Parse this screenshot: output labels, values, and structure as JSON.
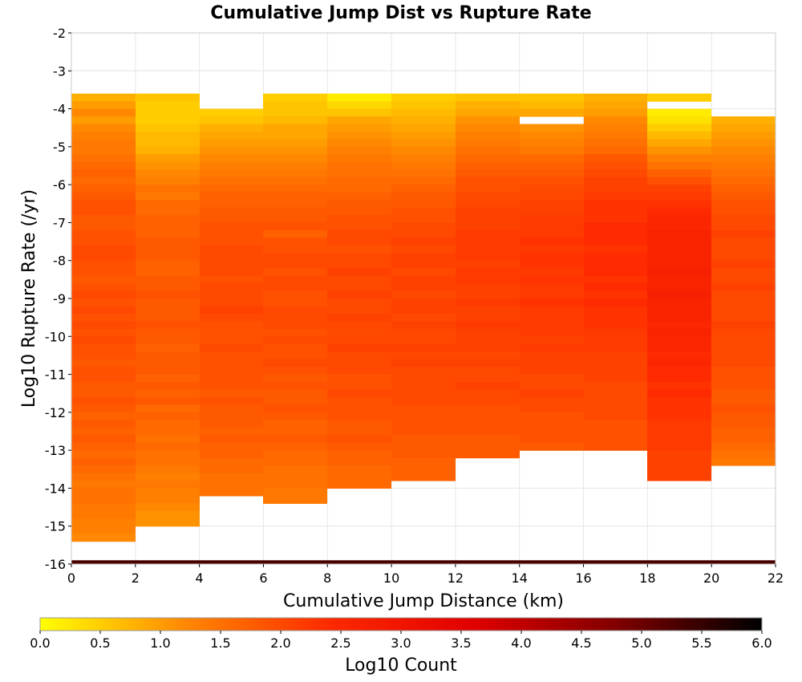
{
  "chart_data": {
    "type": "heatmap",
    "title": "Cumulative Jump Dist vs Rupture Rate",
    "xlabel": "Cumulative Jump Distance (km)",
    "ylabel": "Log10 Rupture Rate (/yr)",
    "xlim": [
      0,
      22
    ],
    "ylim": [
      -16,
      -2
    ],
    "x_ticks": [
      "0",
      "2",
      "4",
      "6",
      "8",
      "10",
      "12",
      "14",
      "16",
      "18",
      "20",
      "22"
    ],
    "y_ticks": [
      "-2",
      "-3",
      "-4",
      "-5",
      "-6",
      "-7",
      "-8",
      "-9",
      "-10",
      "-11",
      "-12",
      "-13",
      "-14",
      "-15",
      "-16"
    ],
    "x_bins": [
      0,
      2,
      4,
      6,
      8,
      10,
      12,
      14,
      16,
      18,
      20
    ],
    "x_bin_width": 2,
    "y_bins_from": -3.6,
    "y_bin_height": 0.2,
    "log10_counts_by_column": [
      [
        0.8,
        1.0,
        1.2,
        1.0,
        1.2,
        1.3,
        1.4,
        1.4,
        1.5,
        1.6,
        1.7,
        1.6,
        1.7,
        1.8,
        1.9,
        1.9,
        1.8,
        1.8,
        1.9,
        1.9,
        2.0,
        2.0,
        1.9,
        1.9,
        1.8,
        1.9,
        2.0,
        1.9,
        2.0,
        1.9,
        2.0,
        1.9,
        2.0,
        1.9,
        1.9,
        1.8,
        1.9,
        1.9,
        1.8,
        1.8,
        1.9,
        1.8,
        1.7,
        1.8,
        1.7,
        1.8,
        1.7,
        1.6,
        1.7,
        1.6,
        1.5,
        1.4,
        1.5,
        1.5,
        1.4,
        1.4,
        1.3,
        1.3,
        1.2
      ],
      [
        0.6,
        0.5,
        0.5,
        0.5,
        0.6,
        0.7,
        0.7,
        0.8,
        1.0,
        1.1,
        1.2,
        1.3,
        1.5,
        1.4,
        1.6,
        1.6,
        1.7,
        1.7,
        1.7,
        1.8,
        1.8,
        1.8,
        1.7,
        1.7,
        1.8,
        1.8,
        1.9,
        1.8,
        1.8,
        1.8,
        1.9,
        1.8,
        1.8,
        1.7,
        1.8,
        1.8,
        1.8,
        1.7,
        1.8,
        1.7,
        1.8,
        1.6,
        1.7,
        1.6,
        1.6,
        1.5,
        1.6,
        1.5,
        1.5,
        1.4,
        1.3,
        1.4,
        1.3,
        1.3,
        1.2,
        1.1,
        1.1
      ],
      [
        null,
        null,
        0.5,
        0.6,
        0.8,
        0.9,
        1.0,
        1.1,
        1.2,
        1.3,
        1.4,
        1.5,
        1.6,
        1.7,
        1.7,
        1.8,
        1.8,
        1.9,
        1.9,
        1.9,
        2.0,
        2.0,
        2.0,
        2.0,
        1.9,
        2.0,
        2.0,
        2.0,
        2.1,
        2.0,
        1.9,
        1.9,
        1.9,
        2.0,
        1.9,
        1.9,
        1.9,
        1.9,
        1.9,
        1.8,
        1.9,
        1.8,
        1.8,
        1.8,
        1.7,
        1.8,
        1.7,
        1.7,
        1.6,
        1.6,
        1.5,
        1.5,
        1.5
      ],
      [
        0.5,
        0.6,
        0.6,
        0.7,
        0.9,
        0.9,
        1.0,
        1.1,
        1.2,
        1.3,
        1.4,
        1.5,
        1.6,
        1.7,
        1.7,
        1.8,
        1.8,
        1.9,
        1.7,
        1.9,
        1.9,
        2.0,
        2.0,
        1.9,
        2.0,
        2.0,
        1.9,
        1.9,
        2.0,
        2.0,
        2.0,
        1.9,
        2.0,
        1.9,
        1.9,
        2.0,
        1.9,
        1.8,
        1.9,
        1.8,
        1.8,
        1.9,
        1.8,
        1.7,
        1.7,
        1.8,
        1.7,
        1.6,
        1.6,
        1.5,
        1.5,
        1.5,
        1.4,
        1.4
      ],
      [
        0.2,
        0.4,
        0.6,
        0.9,
        1.0,
        1.1,
        1.2,
        1.3,
        1.4,
        1.5,
        1.5,
        1.6,
        1.6,
        1.7,
        1.8,
        1.8,
        1.9,
        1.9,
        2.0,
        2.0,
        1.9,
        2.0,
        2.0,
        2.1,
        2.0,
        2.0,
        2.1,
        2.0,
        2.0,
        2.1,
        2.0,
        2.0,
        2.0,
        2.1,
        2.0,
        2.0,
        2.0,
        1.9,
        1.9,
        2.0,
        1.9,
        1.9,
        1.9,
        1.8,
        1.8,
        1.9,
        1.8,
        1.7,
        1.7,
        1.6,
        1.6,
        1.6
      ],
      [
        0.5,
        0.6,
        0.7,
        0.8,
        0.9,
        1.0,
        1.1,
        1.2,
        1.3,
        1.4,
        1.5,
        1.6,
        1.7,
        1.8,
        1.8,
        1.9,
        1.9,
        2.0,
        2.0,
        2.1,
        2.0,
        2.1,
        2.1,
        2.0,
        2.1,
        2.1,
        2.0,
        2.1,
        2.1,
        2.0,
        2.1,
        2.0,
        2.0,
        2.1,
        2.0,
        2.1,
        2.0,
        2.0,
        2.0,
        2.0,
        2.0,
        1.9,
        1.9,
        1.9,
        1.9,
        1.8,
        1.8,
        1.8,
        1.7,
        1.7,
        1.7
      ],
      [
        0.6,
        0.8,
        0.9,
        1.1,
        1.2,
        1.3,
        1.4,
        1.5,
        1.6,
        1.7,
        1.8,
        1.9,
        1.9,
        2.0,
        2.0,
        2.1,
        2.1,
        2.1,
        2.2,
        2.2,
        2.2,
        2.2,
        2.1,
        2.2,
        2.2,
        2.1,
        2.1,
        2.2,
        2.1,
        2.1,
        2.2,
        2.1,
        2.1,
        2.1,
        2.0,
        2.1,
        2.0,
        2.0,
        2.1,
        2.0,
        2.0,
        1.9,
        1.9,
        1.9,
        1.9,
        1.8,
        1.8,
        1.8
      ],
      [
        0.6,
        0.7,
        0.9,
        null,
        1.1,
        1.2,
        1.3,
        1.4,
        1.6,
        1.7,
        1.8,
        1.9,
        2.0,
        2.0,
        2.1,
        2.1,
        2.2,
        2.2,
        2.2,
        2.3,
        2.2,
        2.3,
        2.3,
        2.2,
        2.3,
        2.2,
        2.2,
        2.3,
        2.2,
        2.2,
        2.2,
        2.2,
        2.1,
        2.2,
        2.1,
        2.1,
        2.1,
        2.0,
        2.0,
        2.1,
        2.0,
        2.0,
        1.9,
        1.9,
        1.9,
        1.9,
        1.8
      ],
      [
        0.8,
        0.9,
        1.0,
        1.2,
        1.3,
        1.4,
        1.5,
        1.6,
        1.8,
        1.9,
        2.0,
        2.1,
        2.1,
        2.2,
        2.3,
        2.3,
        2.3,
        2.4,
        2.4,
        2.4,
        2.3,
        2.4,
        2.4,
        2.4,
        2.3,
        2.4,
        2.3,
        2.4,
        2.3,
        2.3,
        2.3,
        2.2,
        2.2,
        2.2,
        2.1,
        2.1,
        2.1,
        2.1,
        2.0,
        2.0,
        2.0,
        2.0,
        2.0,
        1.9,
        1.9,
        1.9,
        1.9
      ],
      [
        0.5,
        null,
        0.2,
        0.3,
        0.5,
        0.7,
        0.9,
        1.1,
        1.3,
        1.5,
        1.7,
        1.9,
        2.1,
        2.2,
        2.3,
        2.4,
        2.5,
        2.5,
        2.6,
        2.6,
        2.6,
        2.6,
        2.6,
        2.7,
        2.6,
        2.6,
        2.7,
        2.6,
        2.6,
        2.6,
        2.5,
        2.6,
        2.5,
        2.5,
        2.4,
        2.5,
        2.4,
        2.4,
        2.3,
        2.4,
        2.3,
        2.3,
        2.3,
        2.2,
        2.2,
        2.2,
        2.2,
        2.1,
        2.1,
        2.1,
        2.1
      ],
      [
        null,
        null,
        null,
        0.8,
        0.9,
        1.0,
        1.1,
        1.2,
        1.3,
        1.4,
        1.5,
        1.6,
        1.7,
        1.8,
        1.9,
        1.9,
        2.0,
        2.0,
        2.1,
        2.0,
        2.0,
        2.0,
        2.1,
        2.0,
        2.0,
        2.1,
        2.0,
        2.0,
        2.0,
        2.0,
        2.1,
        2.0,
        2.0,
        2.0,
        2.0,
        2.0,
        1.9,
        1.9,
        1.9,
        1.8,
        1.8,
        1.9,
        1.8,
        1.8,
        1.7,
        1.7,
        1.6,
        1.5,
        1.4
      ]
    ],
    "bottom_row": {
      "y_range": [
        -16,
        -15.9
      ],
      "log10_count": 5.3
    },
    "colorbar": {
      "label": "Log10 Count",
      "range": [
        0,
        6
      ],
      "ticks": [
        "0.0",
        "0.5",
        "1.0",
        "1.5",
        "2.0",
        "2.5",
        "3.0",
        "3.5",
        "4.0",
        "4.5",
        "5.0",
        "5.5",
        "6.0"
      ],
      "colors": [
        "#ffff00",
        "#ff8800",
        "#ff2a00",
        "#e00000",
        "#800000",
        "#000000"
      ]
    },
    "grid": true,
    "legend": "colorbar-bottom"
  }
}
